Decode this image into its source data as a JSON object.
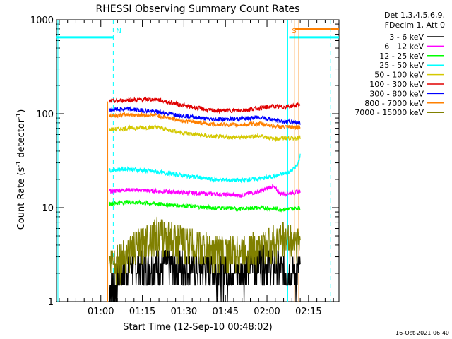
{
  "chart_data": {
    "type": "line",
    "title": "RHESSI Observing Summary Count Rates",
    "xlabel": "Start Time (12-Sep-10 00:48:02)",
    "ylabel": "Count Rate (s",
    "ylabel_sup1": "-1",
    "ylabel_mid": " detector",
    "ylabel_sup2": "-1",
    "ylabel_end": ")",
    "y_scale": "log",
    "ylim": [
      1,
      1000
    ],
    "xlim_minutes_from_0100": [
      -16,
      86
    ],
    "x_ticks": [
      {
        "label": "01:00",
        "m": 0
      },
      {
        "label": "01:15",
        "m": 15
      },
      {
        "label": "01:30",
        "m": 30
      },
      {
        "label": "01:45",
        "m": 45
      },
      {
        "label": "02:00",
        "m": 60
      },
      {
        "label": "02:15",
        "m": 75
      }
    ],
    "y_ticks": [
      {
        "label": "1",
        "v": 1
      },
      {
        "label": "10",
        "v": 10
      },
      {
        "label": "100",
        "v": 100
      },
      {
        "label": "1000",
        "v": 1000
      }
    ],
    "legend_header": [
      "Det 1,3,4,5,6,9,",
      "FDecim 1, Att 0"
    ],
    "legend_placement": "right",
    "series": [
      {
        "name": "3 - 6 keV",
        "color": "#000000",
        "points": [
          [
            3.0,
            1.4
          ],
          [
            5,
            1.6
          ],
          [
            10,
            2.4
          ],
          [
            20,
            2.5
          ],
          [
            30,
            2.4
          ],
          [
            40,
            2.2
          ],
          [
            50,
            2.1
          ],
          [
            58,
            3.0
          ],
          [
            62,
            2.4
          ],
          [
            70,
            2.0
          ],
          [
            72,
            2.2
          ]
        ]
      },
      {
        "name": "6 - 12 keV",
        "color": "#ff00ff",
        "points": [
          [
            3.0,
            15
          ],
          [
            10,
            15.5
          ],
          [
            20,
            15
          ],
          [
            30,
            14.5
          ],
          [
            40,
            14
          ],
          [
            50,
            13.5
          ],
          [
            58,
            15
          ],
          [
            62,
            17
          ],
          [
            65,
            14
          ],
          [
            70,
            14.5
          ],
          [
            72,
            15
          ]
        ]
      },
      {
        "name": "12 - 25 keV",
        "color": "#00ff00",
        "points": [
          [
            3.0,
            11
          ],
          [
            10,
            11.5
          ],
          [
            20,
            11
          ],
          [
            30,
            10.5
          ],
          [
            40,
            10
          ],
          [
            50,
            9.7
          ],
          [
            58,
            10
          ],
          [
            65,
            9.6
          ],
          [
            70,
            9.8
          ],
          [
            72,
            10
          ]
        ]
      },
      {
        "name": "25 - 50 keV",
        "color": "#00ffff",
        "points": [
          [
            3.0,
            25
          ],
          [
            10,
            26
          ],
          [
            20,
            24
          ],
          [
            30,
            22
          ],
          [
            40,
            20
          ],
          [
            50,
            19.5
          ],
          [
            58,
            20.5
          ],
          [
            64,
            22
          ],
          [
            68,
            24
          ],
          [
            71,
            28
          ],
          [
            72,
            36
          ]
        ]
      },
      {
        "name": "50 - 100 keV",
        "color": "#d4c800",
        "points": [
          [
            3.0,
            68
          ],
          [
            10,
            70
          ],
          [
            20,
            72
          ],
          [
            30,
            62
          ],
          [
            40,
            57
          ],
          [
            50,
            56
          ],
          [
            58,
            58
          ],
          [
            62,
            54
          ],
          [
            66,
            55
          ],
          [
            70,
            55
          ],
          [
            72,
            55
          ]
        ]
      },
      {
        "name": "100 - 300 keV",
        "color": "#e00000",
        "points": [
          [
            3.0,
            135
          ],
          [
            10,
            140
          ],
          [
            20,
            142
          ],
          [
            30,
            122
          ],
          [
            40,
            108
          ],
          [
            50,
            108
          ],
          [
            58,
            115
          ],
          [
            62,
            120
          ],
          [
            66,
            118
          ],
          [
            70,
            122
          ],
          [
            72,
            125
          ]
        ]
      },
      {
        "name": "300 - 800 keV",
        "color": "#0000ff",
        "points": [
          [
            3.0,
            110
          ],
          [
            10,
            112
          ],
          [
            20,
            105
          ],
          [
            30,
            95
          ],
          [
            40,
            87
          ],
          [
            50,
            88
          ],
          [
            58,
            92
          ],
          [
            62,
            86
          ],
          [
            66,
            82
          ],
          [
            70,
            82
          ],
          [
            72,
            80
          ]
        ]
      },
      {
        "name": "800 - 7000 keV",
        "color": "#ff8000",
        "points": [
          [
            3.0,
            95
          ],
          [
            10,
            98
          ],
          [
            20,
            96
          ],
          [
            30,
            84
          ],
          [
            40,
            77
          ],
          [
            50,
            76
          ],
          [
            58,
            78
          ],
          [
            62,
            74
          ],
          [
            66,
            72
          ],
          [
            70,
            72
          ],
          [
            72,
            72
          ]
        ]
      },
      {
        "name": "7000 - 15000 keV",
        "color": "#808000",
        "points": [
          [
            3.0,
            2.5
          ],
          [
            10,
            3.5
          ],
          [
            20,
            5.5
          ],
          [
            30,
            4.5
          ],
          [
            40,
            3.5
          ],
          [
            50,
            3.5
          ],
          [
            58,
            4.0
          ],
          [
            62,
            4.5
          ],
          [
            66,
            5.0
          ],
          [
            70,
            4.5
          ],
          [
            72,
            4.5
          ]
        ]
      }
    ],
    "annotations": [
      {
        "label": "N",
        "color": "#00ffff",
        "m": 4.5
      },
      {
        "label": "S",
        "color": "#ff8000",
        "m": 68
      }
    ],
    "timestamp": "16-Oct-2021 06:40"
  }
}
